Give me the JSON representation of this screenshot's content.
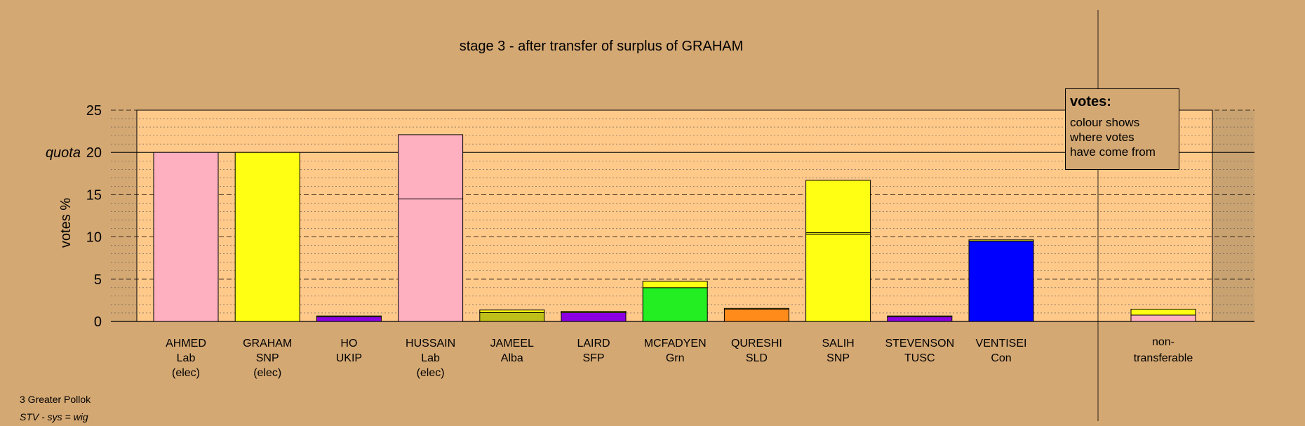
{
  "chart_data": {
    "type": "bar",
    "title": "stage 3 - after transfer of surplus of GRAHAM",
    "ylabel": "votes %",
    "ylim": [
      0,
      25
    ],
    "yticks": [
      "0",
      "5",
      "10",
      "15",
      "20",
      "25"
    ],
    "quota_label": "quota",
    "quota": 20,
    "categories": [
      {
        "name": "AHMED",
        "party": "Lab",
        "status": "(elec)",
        "segments": [
          {
            "value": 20.0,
            "color": "#ffb0c0"
          }
        ]
      },
      {
        "name": "GRAHAM",
        "party": "SNP",
        "status": "(elec)",
        "segments": [
          {
            "value": 20.0,
            "color": "#ffff14"
          }
        ]
      },
      {
        "name": "HO",
        "party": "UKIP",
        "status": "",
        "segments": [
          {
            "value": 0.55,
            "color": "#8a00e0"
          },
          {
            "value": 0.1,
            "color": "#ffff14"
          }
        ]
      },
      {
        "name": "HUSSAIN",
        "party": "Lab",
        "status": "(elec)",
        "segments": [
          {
            "value": 14.5,
            "color": "#ffb0c0"
          },
          {
            "value": 7.6,
            "color": "#ffb0c0"
          }
        ]
      },
      {
        "name": "JAMEEL",
        "party": "Alba",
        "status": "",
        "segments": [
          {
            "value": 1.05,
            "color": "#bfbf1a"
          },
          {
            "value": 0.3,
            "color": "#ffff14"
          }
        ]
      },
      {
        "name": "LAIRD",
        "party": "SFP",
        "status": "",
        "segments": [
          {
            "value": 1.05,
            "color": "#8a00e0"
          },
          {
            "value": 0.15,
            "color": "#ffff14"
          }
        ]
      },
      {
        "name": "MCFADYEN",
        "party": "Grn",
        "status": "",
        "segments": [
          {
            "value": 4.0,
            "color": "#22ee22"
          },
          {
            "value": 0.75,
            "color": "#ffff14"
          }
        ]
      },
      {
        "name": "QURESHI",
        "party": "SLD",
        "status": "",
        "segments": [
          {
            "value": 1.45,
            "color": "#ff8c1a"
          },
          {
            "value": 0.1,
            "color": "#ffff14"
          }
        ]
      },
      {
        "name": "SALIH",
        "party": "SNP",
        "status": "",
        "segments": [
          {
            "value": 10.3,
            "color": "#ffff14"
          },
          {
            "value": 0.2,
            "color": "#ffff14"
          },
          {
            "value": 6.2,
            "color": "#ffff14"
          }
        ]
      },
      {
        "name": "STEVENSON",
        "party": "TUSC",
        "status": "",
        "segments": [
          {
            "value": 0.55,
            "color": "#8a00e0"
          },
          {
            "value": 0.1,
            "color": "#ffff14"
          }
        ]
      },
      {
        "name": "VENTISEI",
        "party": "Con",
        "status": "",
        "segments": [
          {
            "value": 9.5,
            "color": "#0000ff"
          },
          {
            "value": 0.15,
            "color": "#ffff14"
          }
        ]
      }
    ],
    "nontransferable": {
      "line1": "non-",
      "line2": "transferable",
      "segments": [
        {
          "value": 0.75,
          "color": "#ffb0c0"
        },
        {
          "value": 0.7,
          "color": "#ffff14"
        }
      ]
    }
  },
  "legend": {
    "title": "votes:",
    "lines": [
      "colour shows",
      "where votes",
      "have come from"
    ]
  },
  "footer": {
    "area": "3 Greater Pollok",
    "note": "STV - sys = wig"
  }
}
